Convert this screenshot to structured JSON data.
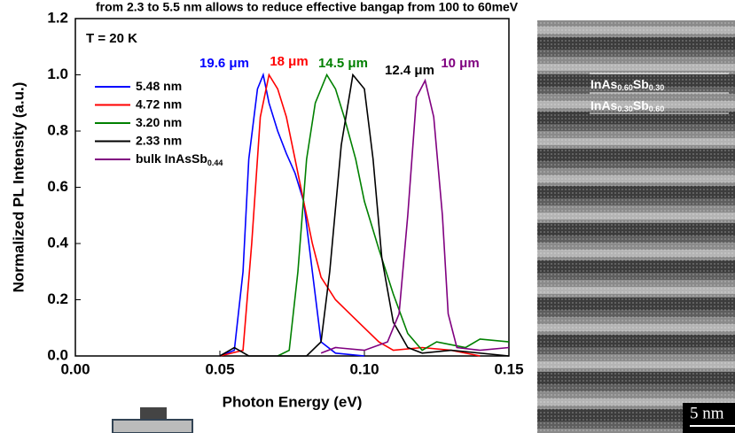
{
  "chart_data": {
    "type": "line",
    "title": "from 2.3 to 5.5 nm allows to reduce effective bangap from 100 to 60meV",
    "x_label": "Photon Energy (eV)",
    "y_label": "Normalized PL Intensity (a.u.)",
    "condition": "T = 20 K",
    "xlim": [
      0,
      0.15
    ],
    "ylim": [
      0,
      1.2
    ],
    "xticks": [
      {
        "value": 0,
        "label": "0.00"
      },
      {
        "value": 0.05,
        "label": "0.05"
      },
      {
        "value": 0.1,
        "label": "0.10"
      },
      {
        "value": 0.15,
        "label": "0.15"
      }
    ],
    "yticks": [
      {
        "value": 0,
        "label": "0.0"
      },
      {
        "value": 0.2,
        "label": "0.2"
      },
      {
        "value": 0.4,
        "label": "0.4"
      },
      {
        "value": 0.6,
        "label": "0.6"
      },
      {
        "value": 0.8,
        "label": "0.8"
      },
      {
        "value": 1.0,
        "label": "1.0"
      },
      {
        "value": 1.2,
        "label": "1.2"
      }
    ],
    "series": [
      {
        "name": "5.48 nm",
        "color": "#0000ff",
        "x": [
          0.05,
          0.055,
          0.058,
          0.06,
          0.063,
          0.065,
          0.067,
          0.07,
          0.073,
          0.076,
          0.079,
          0.082,
          0.085,
          0.09,
          0.1
        ],
        "values": [
          0,
          0.02,
          0.3,
          0.7,
          0.95,
          1.0,
          0.9,
          0.8,
          0.72,
          0.65,
          0.55,
          0.3,
          0.05,
          0.01,
          0
        ]
      },
      {
        "name": "4.72 nm",
        "color": "#ff0000",
        "x": [
          0.05,
          0.058,
          0.061,
          0.064,
          0.067,
          0.07,
          0.073,
          0.076,
          0.079,
          0.082,
          0.085,
          0.09,
          0.095,
          0.1,
          0.105,
          0.11,
          0.12,
          0.13,
          0.14
        ],
        "values": [
          0,
          0.02,
          0.4,
          0.85,
          1.0,
          0.95,
          0.85,
          0.7,
          0.55,
          0.4,
          0.28,
          0.2,
          0.15,
          0.1,
          0.05,
          0.02,
          0.03,
          0.02,
          0
        ]
      },
      {
        "name": "3.20 nm",
        "color": "#008000",
        "x": [
          0.07,
          0.074,
          0.077,
          0.08,
          0.083,
          0.087,
          0.09,
          0.093,
          0.097,
          0.1,
          0.105,
          0.11,
          0.115,
          0.12,
          0.125,
          0.13,
          0.135,
          0.14,
          0.15
        ],
        "values": [
          0,
          0.02,
          0.3,
          0.7,
          0.9,
          1.0,
          0.95,
          0.85,
          0.7,
          0.55,
          0.38,
          0.22,
          0.08,
          0.02,
          0.05,
          0.04,
          0.03,
          0.06,
          0.05
        ]
      },
      {
        "name": "2.33 nm",
        "color": "#000000",
        "x": [
          0.05,
          0.055,
          0.06,
          0.08,
          0.085,
          0.088,
          0.092,
          0.096,
          0.1,
          0.103,
          0.106,
          0.11,
          0.115,
          0.12,
          0.13,
          0.15
        ],
        "values": [
          0,
          0.03,
          0,
          0,
          0.05,
          0.3,
          0.75,
          1.0,
          0.95,
          0.7,
          0.35,
          0.12,
          0.03,
          0.01,
          0.02,
          0
        ]
      },
      {
        "name": "bulk InAsSb",
        "name_sub": "0.44",
        "color": "#800080",
        "x": [
          0.085,
          0.09,
          0.1,
          0.108,
          0.112,
          0.115,
          0.118,
          0.121,
          0.124,
          0.127,
          0.129,
          0.132,
          0.14,
          0.15
        ],
        "values": [
          0.01,
          0.03,
          0.02,
          0.05,
          0.15,
          0.5,
          0.92,
          0.98,
          0.85,
          0.5,
          0.15,
          0.03,
          0.02,
          0.03
        ]
      }
    ],
    "peak_labels": [
      {
        "text": "19.6 μm",
        "color": "#0000ff"
      },
      {
        "text": "18 μm",
        "color": "#ff0000"
      },
      {
        "text": "14.5 μm",
        "color": "#008000"
      },
      {
        "text": "12.4 μm",
        "color": "#000000"
      },
      {
        "text": "10 μm",
        "color": "#800080"
      }
    ]
  },
  "image": {
    "layers": [
      {
        "base": "InAs",
        "sub1": "0.60",
        "mid": "Sb",
        "sub2": "0.30"
      },
      {
        "base": "InAs",
        "sub1": "0.30",
        "mid": "Sb",
        "sub2": "0.60"
      }
    ],
    "scale_bar": "5 nm"
  }
}
